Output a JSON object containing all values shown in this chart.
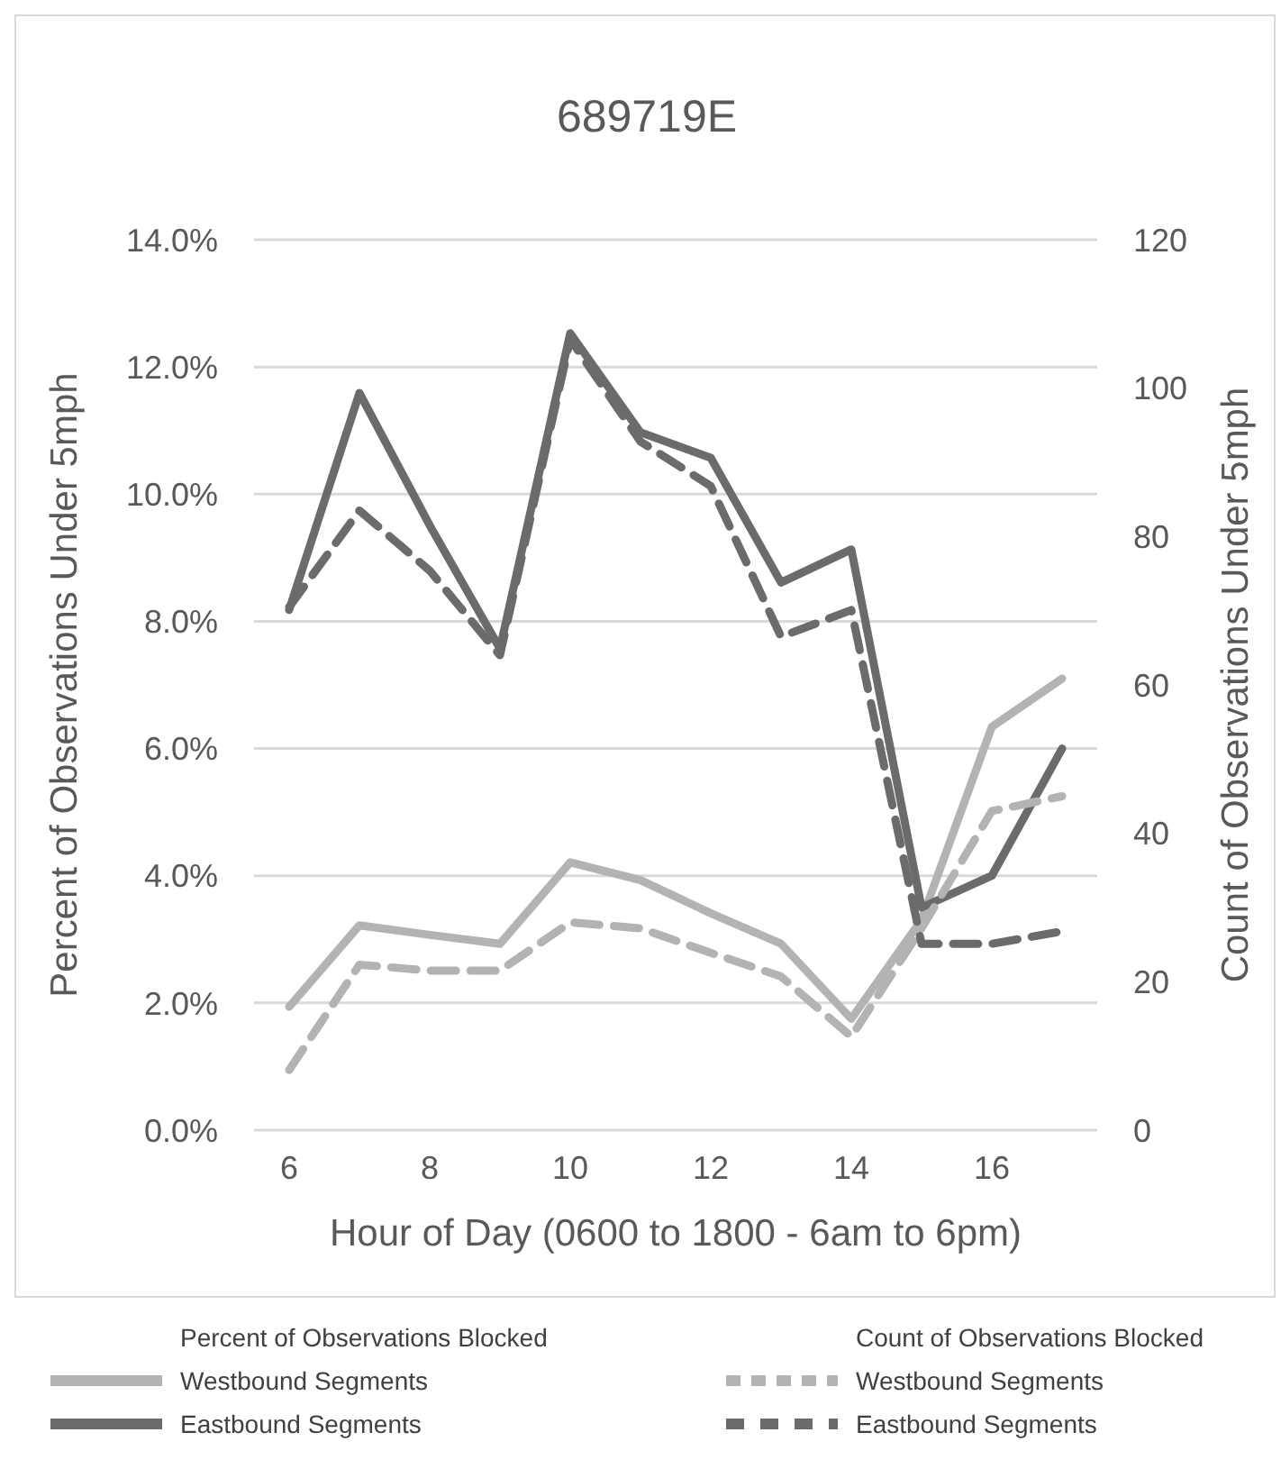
{
  "chart_data": {
    "type": "line",
    "title": "689719E",
    "xlabel": "Hour of Day (0600 to 1800 - 6am to 6pm)",
    "ylabel": "Percent of Observations Under 5mph",
    "y2label": "Count of Observations Under 5mph",
    "x": [
      6,
      7,
      8,
      9,
      10,
      11,
      12,
      13,
      14,
      15,
      16,
      17
    ],
    "xlim": [
      5.5,
      17.5
    ],
    "xticks": [
      6,
      8,
      10,
      12,
      14,
      16
    ],
    "ylim": [
      0,
      14
    ],
    "yticks": [
      {
        "value": 0,
        "label": "0.0%"
      },
      {
        "value": 2,
        "label": "2.0%"
      },
      {
        "value": 4,
        "label": "4.0%"
      },
      {
        "value": 6,
        "label": "6.0%"
      },
      {
        "value": 8,
        "label": "8.0%"
      },
      {
        "value": 10,
        "label": "10.0%"
      },
      {
        "value": 12,
        "label": "12.0%"
      },
      {
        "value": 14,
        "label": "14.0%"
      }
    ],
    "y2lim": [
      0,
      120
    ],
    "y2ticks": [
      0,
      20,
      40,
      60,
      80,
      100,
      120
    ],
    "grid": "y",
    "legend": "bottom",
    "marker": "none",
    "annotations": [
      "Percent of Observations Blocked",
      "Count of Observations Blocked"
    ],
    "series": [
      {
        "name": "Westbound Segments",
        "color": "#b3b3b3",
        "line_style": "solid",
        "values": [
          1.94,
          3.22,
          3.07,
          2.93,
          4.21,
          3.93,
          3.41,
          2.93,
          1.75,
          3.31,
          6.34,
          7.1
        ]
      },
      {
        "name": "Eastbound Segments",
        "color": "#6b6b6b",
        "line_style": "solid",
        "values": [
          8.18,
          11.59,
          9.51,
          7.57,
          12.53,
          10.97,
          10.57,
          8.61,
          9.13,
          3.5,
          4.0,
          6.0
        ]
      },
      {
        "name": "Westbound Segments",
        "color": "#b3b3b3",
        "line_style": "dashed",
        "axis": "y2",
        "values": [
          8.1,
          22.3,
          21.5,
          21.5,
          28.0,
          27.2,
          23.9,
          20.7,
          12.6,
          27.2,
          43,
          45
        ]
      },
      {
        "name": "Eastbound Segments",
        "color": "#6b6b6b",
        "line_style": "dashed",
        "axis": "y2",
        "values": [
          70.5,
          83.5,
          75.4,
          64,
          106.6,
          92.8,
          86.8,
          66.5,
          70.1,
          25.1,
          25.1,
          26.8
        ]
      }
    ]
  }
}
